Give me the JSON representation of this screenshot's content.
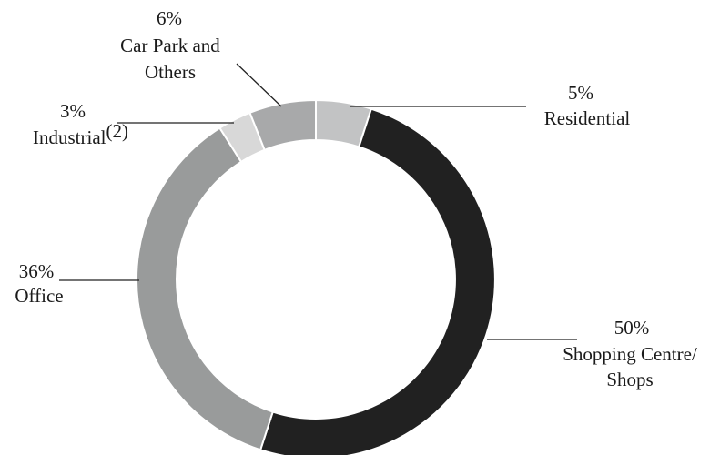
{
  "chart_data": {
    "type": "pie",
    "style": "donut",
    "start_angle_deg": 0,
    "direction": "clockwise",
    "slices": [
      {
        "pct_label": "5%",
        "label": "Residential",
        "value": 5,
        "color": "#c2c3c4"
      },
      {
        "pct_label": "50%",
        "label_lines": [
          "Shopping Centre/",
          "Shops"
        ],
        "value": 50,
        "color": "#212121"
      },
      {
        "pct_label": "36%",
        "label": "Office",
        "value": 36,
        "color": "#999b9b"
      },
      {
        "pct_label": "3%",
        "label": "Industrial",
        "label_sup": "(2)",
        "value": 3,
        "color": "#d8d8d8"
      },
      {
        "pct_label": "6%",
        "label_lines": [
          "Car Park and",
          "Others"
        ],
        "value": 6,
        "color": "#a8a9aa"
      }
    ]
  }
}
